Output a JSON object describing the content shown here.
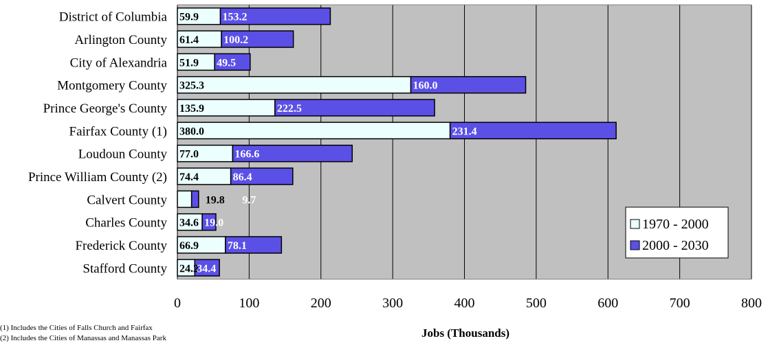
{
  "chart_data": {
    "type": "bar",
    "orientation": "horizontal",
    "stacked": true,
    "categories": [
      "District of Columbia",
      "Arlington County",
      "City of Alexandria",
      "Montgomery County",
      "Prince George's County",
      "Fairfax County (1)",
      "Loudoun County",
      "Prince William County (2)",
      "Calvert County",
      "Charles County",
      "Frederick County",
      "Stafford County"
    ],
    "series": [
      {
        "name": "1970 - 2000",
        "color": "#ecffff",
        "values": [
          59.9,
          61.4,
          51.9,
          325.3,
          135.9,
          380.0,
          77.0,
          74.4,
          19.8,
          34.6,
          66.9,
          24.2
        ],
        "labels": [
          "59.9",
          "61.4",
          "51.9",
          "325.3",
          "135.9",
          "380.0",
          "77.0",
          "74.4",
          "19.8",
          "34.6",
          "66.9",
          "24.2"
        ]
      },
      {
        "name": "2000 - 2030",
        "color": "#5b50e6",
        "values": [
          153.2,
          100.2,
          49.5,
          160.0,
          222.5,
          231.4,
          166.6,
          86.4,
          9.7,
          19.0,
          78.1,
          34.4
        ],
        "labels": [
          "153.2",
          "100.2",
          "49.5",
          "160.0",
          "222.5",
          "231.4",
          "166.6",
          "86.4",
          "9.7",
          "19.0",
          "78.1",
          "34.4"
        ]
      }
    ],
    "xlabel": "Jobs (Thousands)",
    "xlim": [
      0,
      800
    ],
    "xticks": [
      "0",
      "100",
      "200",
      "300",
      "400",
      "500",
      "600",
      "700",
      "800"
    ],
    "grid": true,
    "plot_background": "#c0c0c0",
    "legend_position": "right",
    "footnotes": [
      "(1) Includes the Cities of Falls Church and Fairfax",
      "(2) Includes the Cities of Manassas and Manassas Park"
    ]
  }
}
